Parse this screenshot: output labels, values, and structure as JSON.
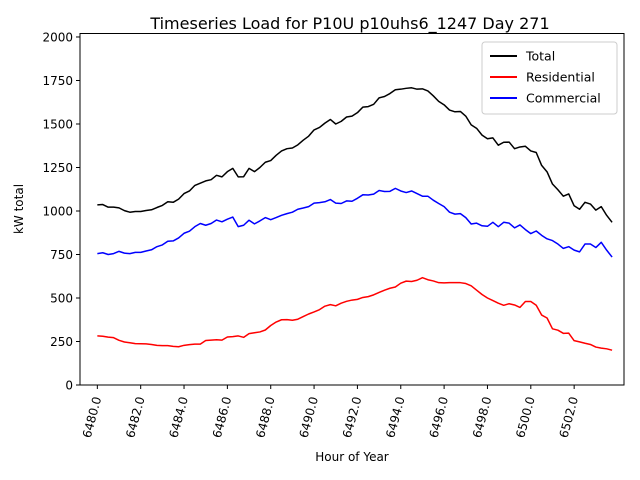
{
  "chart_data": {
    "type": "line",
    "title": "Timeseries Load for P10U p10uhs6_1247  Day 271",
    "xlabel": "Hour of Year",
    "ylabel": "kW total",
    "xlim": [
      6479.2,
      6504.3
    ],
    "ylim": [
      0,
      2020
    ],
    "x_ticks": [
      6480,
      6482,
      6484,
      6486,
      6488,
      6490,
      6492,
      6494,
      6496,
      6498,
      6500,
      6502
    ],
    "x_tick_labels": [
      "6480.0",
      "6482.0",
      "6484.0",
      "6486.0",
      "6488.0",
      "6490.0",
      "6492.0",
      "6494.0",
      "6496.0",
      "6498.0",
      "6500.0",
      "6502.0"
    ],
    "y_ticks": [
      0,
      250,
      500,
      750,
      1000,
      1250,
      1500,
      1750,
      2000
    ],
    "y_tick_labels": [
      "0",
      "250",
      "500",
      "750",
      "1000",
      "1250",
      "1500",
      "1750",
      "2000"
    ],
    "grid": false,
    "legend_position": "top-right",
    "x_start": 6480,
    "x_step": 0.25,
    "series": [
      {
        "name": "Total",
        "color": "#000000",
        "values": [
          1035,
          1037,
          1022,
          1022,
          1018,
          1002,
          993,
          997,
          997,
          1003,
          1007,
          1020,
          1032,
          1053,
          1050,
          1068,
          1100,
          1115,
          1147,
          1160,
          1173,
          1180,
          1205,
          1196,
          1226,
          1245,
          1196,
          1197,
          1245,
          1226,
          1250,
          1280,
          1290,
          1320,
          1345,
          1358,
          1362,
          1380,
          1407,
          1430,
          1466,
          1480,
          1505,
          1526,
          1500,
          1515,
          1540,
          1545,
          1565,
          1597,
          1600,
          1613,
          1650,
          1658,
          1675,
          1697,
          1700,
          1705,
          1708,
          1700,
          1702,
          1690,
          1662,
          1630,
          1610,
          1580,
          1570,
          1572,
          1545,
          1495,
          1475,
          1436,
          1415,
          1420,
          1378,
          1395,
          1396,
          1358,
          1368,
          1372,
          1345,
          1336,
          1262,
          1225,
          1155,
          1122,
          1085,
          1098,
          1030,
          1010,
          1050,
          1040,
          1005,
          1025,
          975,
          935
        ]
      },
      {
        "name": "Residential",
        "color": "#ff0000",
        "values": [
          282,
          280,
          275,
          272,
          257,
          247,
          243,
          238,
          237,
          236,
          233,
          228,
          226,
          226,
          222,
          220,
          228,
          232,
          235,
          235,
          256,
          258,
          260,
          258,
          276,
          278,
          282,
          274,
          295,
          300,
          305,
          316,
          342,
          362,
          375,
          376,
          372,
          378,
          393,
          408,
          420,
          433,
          453,
          462,
          455,
          470,
          481,
          488,
          492,
          503,
          508,
          518,
          532,
          545,
          556,
          563,
          585,
          597,
          595,
          602,
          617,
          605,
          598,
          588,
          587,
          588,
          588,
          588,
          583,
          570,
          545,
          520,
          500,
          485,
          470,
          458,
          467,
          460,
          446,
          480,
          480,
          458,
          402,
          385,
          323,
          315,
          297,
          298,
          255,
          248,
          240,
          233,
          218,
          212,
          208,
          200
        ]
      },
      {
        "name": "Commercial",
        "color": "#0000ff",
        "values": [
          755,
          760,
          750,
          755,
          768,
          758,
          755,
          762,
          762,
          770,
          777,
          795,
          805,
          826,
          828,
          845,
          872,
          884,
          910,
          928,
          918,
          928,
          948,
          938,
          953,
          965,
          910,
          918,
          947,
          926,
          943,
          962,
          950,
          962,
          975,
          985,
          993,
          1010,
          1017,
          1025,
          1045,
          1048,
          1053,
          1066,
          1045,
          1043,
          1058,
          1056,
          1073,
          1093,
          1092,
          1097,
          1118,
          1112,
          1113,
          1130,
          1115,
          1106,
          1115,
          1100,
          1085,
          1085,
          1062,
          1043,
          1025,
          993,
          982,
          985,
          962,
          925,
          930,
          915,
          912,
          935,
          910,
          935,
          930,
          903,
          920,
          893,
          870,
          885,
          860,
          840,
          830,
          810,
          785,
          795,
          775,
          765,
          810,
          810,
          790,
          820,
          775,
          735
        ]
      }
    ]
  }
}
